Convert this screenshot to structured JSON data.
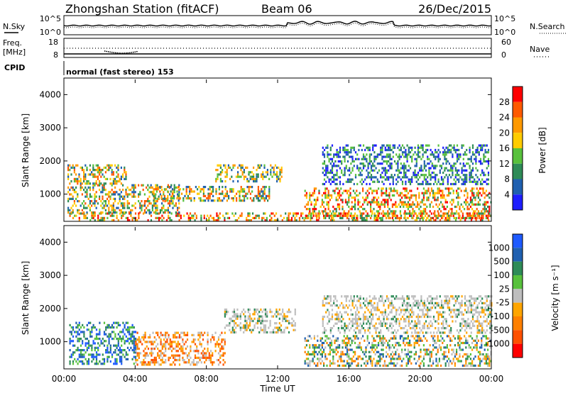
{
  "header": {
    "station": "Zhongshan Station (fitACF)",
    "beam": "Beam 06",
    "date": "26/Dec/2015"
  },
  "strip": {
    "nsky_label": "N.Sky",
    "nsky_ticks": [
      "10^5",
      "10^0"
    ],
    "nsearch_label": "N.Search",
    "nsearch_ticks": [
      "10^5",
      "10^0"
    ],
    "freq_label_line1": "Freq.",
    "freq_label_line2": "[MHz]",
    "freq_ticks": [
      "18",
      "8"
    ],
    "nave_label": "Nave",
    "nave_ticks": [
      "60",
      "0"
    ],
    "cpid_label": "CPID",
    "cpid_value": "normal (fast stereo) 153"
  },
  "axes": {
    "y_label": "Slant Range [km]",
    "y_ticks": [
      "4000",
      "3000",
      "2000",
      "1000"
    ],
    "x_label": "Time UT",
    "x_ticks": [
      "00:00",
      "04:00",
      "08:00",
      "12:00",
      "16:00",
      "20:00",
      "00:00"
    ]
  },
  "power_scale": {
    "label": "Power [dB]",
    "ticks": [
      "28",
      "24",
      "20",
      "16",
      "12",
      "8",
      "4"
    ],
    "colors": [
      "#ff0000",
      "#ff5a00",
      "#ff9900",
      "#ffcc00",
      "#58c13c",
      "#2e8b57",
      "#2060b0",
      "#1e1eff"
    ]
  },
  "velocity_scale": {
    "label": "Velocity [m s⁻¹]",
    "ticks": [
      "1000",
      "500",
      "100",
      "25",
      "-25",
      "-100",
      "-500",
      "-1000"
    ],
    "colors": [
      "#1e5aff",
      "#2060b0",
      "#2e8b57",
      "#58c13c",
      "#bebebe",
      "#ffa500",
      "#ff8000",
      "#ff5000",
      "#ff0000"
    ]
  },
  "chart_data": [
    {
      "type": "heatmap",
      "title": "Power",
      "xlabel": "Time UT",
      "ylabel": "Slant Range [km]",
      "x_range": [
        "00:00",
        "24:00"
      ],
      "ylim": [
        180,
        4500
      ],
      "colorbar": {
        "label": "Power [dB]",
        "range": [
          0,
          32
        ]
      },
      "bands": [
        {
          "t0": 0.3,
          "t1": 23.9,
          "r0": 200,
          "r1": 450,
          "level": "high"
        },
        {
          "t0": 0.2,
          "t1": 6.5,
          "r0": 450,
          "r1": 1300,
          "level": "mixed"
        },
        {
          "t0": 0.2,
          "t1": 3.5,
          "r0": 1350,
          "r1": 1900,
          "level": "mixed"
        },
        {
          "t0": 5.0,
          "t1": 11.5,
          "r0": 800,
          "r1": 1250,
          "level": "mixed"
        },
        {
          "t0": 8.5,
          "t1": 12.2,
          "r0": 1400,
          "r1": 1900,
          "level": "medium"
        },
        {
          "t0": 13.5,
          "t1": 24.0,
          "r0": 300,
          "r1": 1200,
          "level": "high"
        },
        {
          "t0": 14.5,
          "t1": 23.8,
          "r0": 1300,
          "r1": 2500,
          "level": "low"
        }
      ]
    },
    {
      "type": "heatmap",
      "title": "Velocity",
      "xlabel": "Time UT",
      "ylabel": "Slant Range [km]",
      "x_range": [
        "00:00",
        "24:00"
      ],
      "ylim": [
        180,
        4500
      ],
      "colorbar": {
        "label": "Velocity [m s⁻¹]",
        "range": [
          -1000,
          1000
        ]
      },
      "bands": [
        {
          "t0": 0.3,
          "t1": 4.0,
          "r0": 300,
          "r1": 1600,
          "level": "positive"
        },
        {
          "t0": 4.0,
          "t1": 9.0,
          "r0": 300,
          "r1": 1300,
          "level": "negative"
        },
        {
          "t0": 9.0,
          "t1": 13.0,
          "r0": 1300,
          "r1": 2000,
          "level": "near-zero"
        },
        {
          "t0": 13.5,
          "t1": 24.0,
          "r0": 300,
          "r1": 1200,
          "level": "mixed"
        },
        {
          "t0": 14.5,
          "t1": 24.0,
          "r0": 1300,
          "r1": 2400,
          "level": "near-zero"
        }
      ]
    }
  ]
}
